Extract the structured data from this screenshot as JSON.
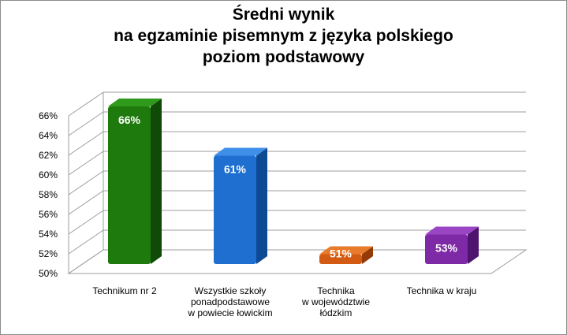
{
  "chart_data": {
    "type": "bar",
    "title_lines": [
      "Średni wynik",
      "na egzaminie pisemnym z języka polskiego",
      "poziom podstawowy"
    ],
    "categories": [
      [
        "Technikum nr 2"
      ],
      [
        "Wszystkie szkoły",
        "ponadpodstawowe",
        "w powiecie łowickim"
      ],
      [
        "Technika",
        "w województwie",
        "łódzkim"
      ],
      [
        "Technika w kraju"
      ]
    ],
    "values": [
      66,
      61,
      51,
      53
    ],
    "value_labels": [
      "66%",
      "61%",
      "51%",
      "53%"
    ],
    "ylim": [
      50,
      66
    ],
    "yticks": [
      "50%",
      "52%",
      "54%",
      "56%",
      "58%",
      "60%",
      "62%",
      "64%",
      "66%"
    ],
    "grid": true,
    "legend": "none",
    "colors": {
      "bars": [
        "#1f7a0e",
        "#1f6fd0",
        "#d25a12",
        "#7e2aa6"
      ],
      "bars_side": [
        "#0f4a06",
        "#0d4a94",
        "#933a06",
        "#4f1370"
      ],
      "bars_top": [
        "#2f9a1c",
        "#3f8fe8",
        "#e87a2c",
        "#9a46c4"
      ],
      "grid": "#9c9c9c",
      "label_text": "#ffffff"
    }
  }
}
